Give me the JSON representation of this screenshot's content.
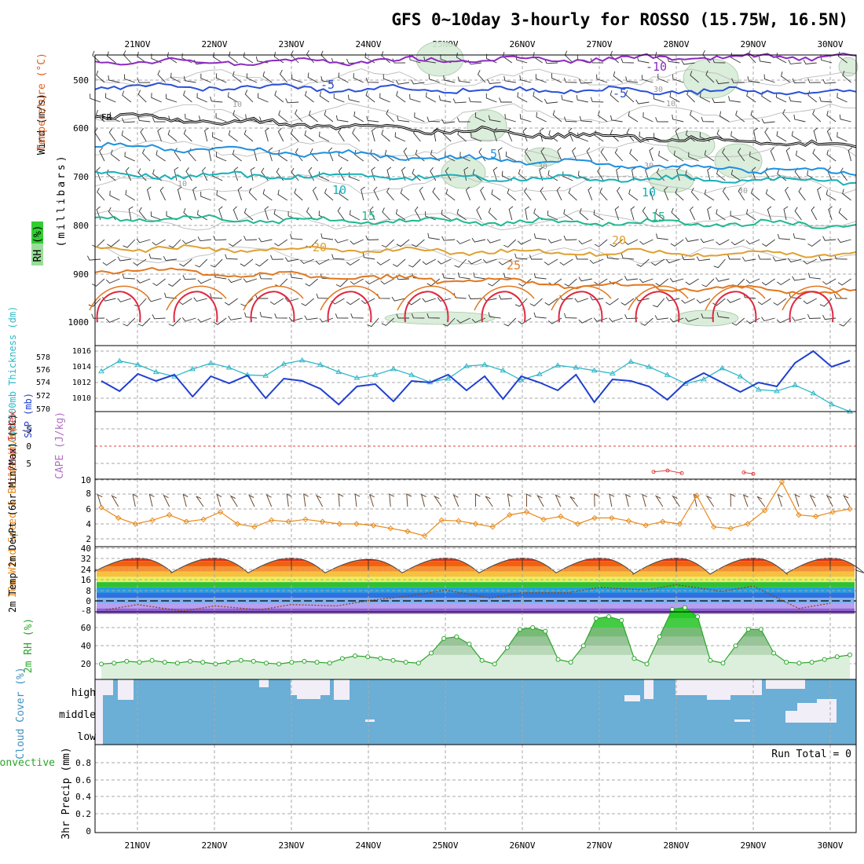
{
  "title": "GFS 0~10day 3-hourly for ROSSO (15.75W, 16.5N)",
  "colors": {
    "cloud_blue": "#6baed6",
    "cloud_gap": "#f2eef7",
    "thickness": "#30b8c8",
    "slp": "#1f3fd0",
    "wind": "#e88b1c",
    "rh": "#2aa62a",
    "temp": "#e03010",
    "dewpt": "#8b4513",
    "lifted": "#e04040"
  },
  "chart_data": [
    {
      "panel": "upper_air",
      "type": "contour",
      "x": [
        "21NOV",
        "22NOV",
        "23NOV",
        "24NOV",
        "25NOV",
        "26NOV",
        "27NOV",
        "28NOV",
        "29NOV",
        "30NOV"
      ],
      "ylabel_parts": [
        "Wind (m/s)",
        "Temperature (°C)",
        "RH (%)",
        "(millibars)"
      ],
      "y_ticks": [
        "500",
        "600",
        "700",
        "800",
        "900",
        "1000"
      ],
      "ylim": [
        450,
        1000
      ],
      "isotherms": [
        {
          "label": "-10",
          "level": 470,
          "color": "#8c2bc0"
        },
        {
          "label": "-5",
          "level": 525,
          "color": "#2a50d8"
        },
        {
          "label": "FR",
          "level": 585,
          "color": "#000000"
        },
        {
          "label": "5",
          "level": 650,
          "color": "#1e90e0"
        },
        {
          "label": "10",
          "level": 720,
          "color": "#18b0b8"
        },
        {
          "label": "15",
          "level": 790,
          "color": "#20b890"
        },
        {
          "label": "20",
          "level": 855,
          "color": "#e0a030"
        },
        {
          "label": "25",
          "level": 905,
          "color": "#e07820"
        }
      ],
      "rh_labels": [
        "10",
        "30"
      ]
    },
    {
      "panel": "thickness_slp",
      "type": "line",
      "ylabel_left": "1000-500mb Thickness (dm)",
      "ylabel_right": "SLP (mb)",
      "thickness_ticks": [
        "578",
        "576",
        "574",
        "572",
        "570"
      ],
      "slp_ticks": [
        "1016",
        "1014",
        "1012",
        "1010"
      ],
      "series": [
        {
          "name": "Thickness",
          "values": [
            575.5,
            576.9,
            576.4,
            575.4,
            574.8,
            575.8,
            576.6,
            576.0,
            575.0,
            574.9,
            576.5,
            577.0,
            576.4,
            575.4,
            574.6,
            575.0,
            575.8,
            575.0,
            574.0,
            574.5,
            576.2,
            576.4,
            575.6,
            574.3,
            575.1,
            576.3,
            576.0,
            575.6,
            575.2,
            576.8,
            576.1,
            575.0,
            573.8,
            574.4,
            575.9,
            574.8,
            573.0,
            572.8,
            573.6,
            572.5,
            571.0,
            570.0
          ]
        },
        {
          "name": "SLP",
          "values": [
            1012.2,
            1010.9,
            1013.1,
            1012.2,
            1013.0,
            1010.2,
            1012.8,
            1011.9,
            1012.9,
            1010.0,
            1012.5,
            1012.2,
            1011.2,
            1009.2,
            1011.5,
            1011.8,
            1009.6,
            1012.2,
            1012.0,
            1013.0,
            1011.0,
            1012.8,
            1009.9,
            1012.8,
            1012.0,
            1011.0,
            1013.0,
            1009.5,
            1012.4,
            1012.2,
            1011.5,
            1009.8,
            1012.0,
            1013.2,
            1012.0,
            1010.8,
            1012.0,
            1011.5,
            1014.5,
            1016.0,
            1014.0,
            1014.8
          ]
        }
      ]
    },
    {
      "panel": "lifted_cape",
      "type": "line",
      "ylabel_left": "Lifted Index",
      "ylabel_right": "CAPE (J/kg)",
      "y_ticks": [
        "-5",
        "0",
        "5"
      ],
      "series": [
        {
          "name": "Lifted Index",
          "values": [
            3.8,
            3.6,
            4.0
          ]
        },
        {
          "name": "Lifted Index 2",
          "values": [
            3.9,
            4.1
          ]
        }
      ]
    },
    {
      "panel": "wind10m",
      "type": "line",
      "ylabel": "10m Wind Speed & Barbs (m/s)",
      "y_ticks": [
        "10",
        "8",
        "6",
        "4",
        "2"
      ],
      "series": [
        {
          "name": "Wind Speed",
          "values": [
            6.2,
            4.8,
            4.0,
            4.5,
            5.2,
            4.3,
            4.6,
            5.6,
            4.0,
            3.6,
            4.5,
            4.3,
            4.6,
            4.3,
            4.0,
            4.0,
            3.8,
            3.4,
            3.0,
            2.4,
            4.5,
            4.4,
            4.0,
            3.6,
            5.2,
            5.6,
            4.6,
            5.0,
            4.0,
            4.8,
            4.8,
            4.4,
            3.8,
            4.3,
            4.0,
            7.8,
            3.6,
            3.4,
            4.0,
            5.8,
            9.6,
            5.2,
            5.0,
            5.6,
            6.0
          ]
        }
      ]
    },
    {
      "panel": "temp2m",
      "type": "area",
      "ylabel": "2m Temp 2m DewPt (6hr Min/Max) (°C)",
      "y_ticks": [
        "40",
        "32",
        "24",
        "16",
        "8",
        "0",
        "-8"
      ],
      "series": [
        {
          "name": "2m Temp max",
          "values": [
            34,
            34,
            34,
            33,
            34,
            34,
            34,
            34,
            34,
            34
          ]
        },
        {
          "name": "2m Temp min",
          "values": [
            24,
            23,
            23,
            23,
            23,
            23,
            23,
            22,
            22,
            23
          ]
        },
        {
          "name": "2m DewPt",
          "values": [
            -1,
            -2,
            -1,
            2,
            10,
            8,
            12,
            14,
            13,
            0
          ]
        }
      ]
    },
    {
      "panel": "rh2m",
      "type": "area",
      "ylabel": "2m RH (%)",
      "y_ticks": [
        "60",
        "40",
        "20"
      ],
      "series": [
        {
          "name": "2m RH",
          "values": [
            10,
            11,
            13,
            12,
            14,
            12,
            11,
            13,
            12,
            10,
            12,
            14,
            13,
            11,
            10,
            12,
            13,
            12,
            11,
            16,
            19,
            18,
            16,
            14,
            12,
            11,
            22,
            38,
            40,
            32,
            14,
            10,
            28,
            48,
            50,
            46,
            15,
            12,
            30,
            60,
            62,
            58,
            16,
            10,
            40,
            70,
            72,
            62,
            14,
            11,
            30,
            48,
            48,
            22,
            12,
            11,
            12,
            15,
            18,
            20
          ]
        }
      ]
    },
    {
      "panel": "cloud_cover",
      "type": "area",
      "ylabel": "Cloud Cover (%)",
      "levels": [
        "high",
        "middle",
        "low"
      ]
    },
    {
      "panel": "precip",
      "type": "bar",
      "ylabel_left": "Total / Rain Convective",
      "ylabel_right": "3hr Precip (mm)",
      "y_ticks": [
        "0.8",
        "0.6",
        "0.4",
        "0.2",
        "0"
      ],
      "ylim": [
        0,
        0.9
      ],
      "run_total_text": "Run Total = 0",
      "values": []
    }
  ]
}
